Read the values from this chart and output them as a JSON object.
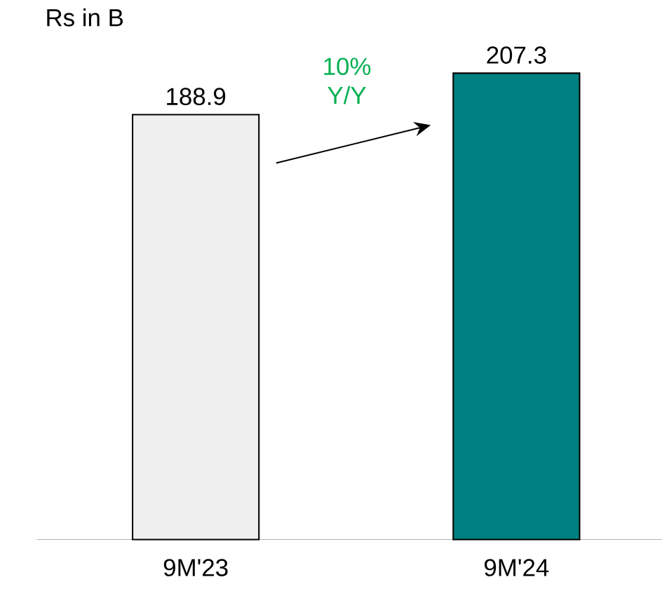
{
  "chart_data": {
    "type": "bar",
    "ylabel": "Rs in B",
    "categories": [
      "9M'23",
      "9M'24"
    ],
    "values": [
      188.9,
      207.3
    ],
    "colors": [
      "#f0f0f0",
      "#008080"
    ],
    "data_labels": true,
    "annotations": [
      "10% Y/Y"
    ]
  }
}
